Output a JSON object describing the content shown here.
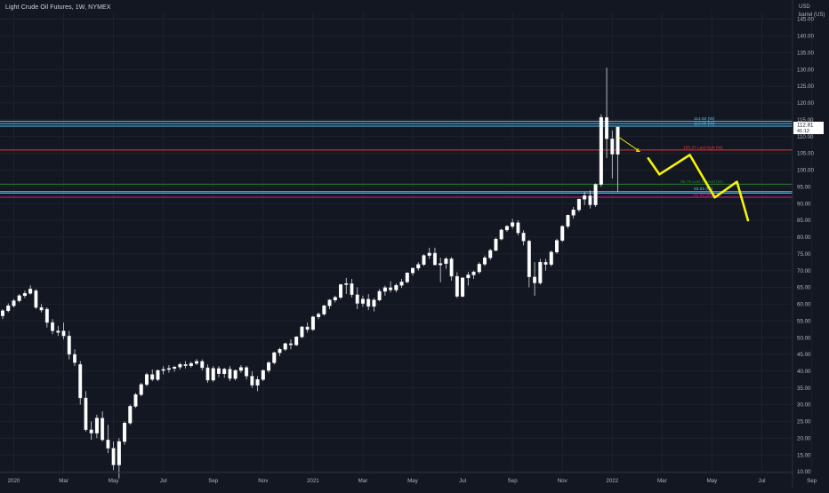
{
  "header": {
    "title": "Light Crude Oil Futures, 1W, NYMEX",
    "currency": "USD",
    "unit": "barrel (US)"
  },
  "price_labels": {
    "current_price": "112.81",
    "countdown": "41:12"
  },
  "colors": {
    "background": "#131722",
    "up_candle": "#ffffff",
    "down_candle": "#ffffff",
    "grid": "#1e222d",
    "axis_text": "#b2b5be",
    "yellow_projection": "#f5f20a",
    "red_line": "#e8333a",
    "cyan_line": "#4fc3f7",
    "green_line": "#2e7d32",
    "magenta_line": "#d81b9a"
  },
  "chart_data": {
    "type": "candlestick",
    "title": "Light Crude Oil Futures, 1W, NYMEX",
    "ylim": [
      10,
      147
    ],
    "y_ticks": [
      10,
      15,
      20,
      25,
      30,
      35,
      40,
      45,
      50,
      55,
      60,
      65,
      70,
      75,
      80,
      85,
      90,
      95,
      100,
      105,
      110,
      115,
      120,
      125,
      130,
      135,
      140,
      145
    ],
    "x_tick_labels": [
      {
        "label": "2020",
        "index": 2
      },
      {
        "label": "Mar",
        "index": 11
      },
      {
        "label": "May",
        "index": 20
      },
      {
        "label": "Jul",
        "index": 29
      },
      {
        "label": "Sep",
        "index": 38
      },
      {
        "label": "Nov",
        "index": 47
      },
      {
        "label": "2021",
        "index": 56
      },
      {
        "label": "Mar",
        "index": 65
      },
      {
        "label": "May",
        "index": 74
      },
      {
        "label": "Jul",
        "index": 83
      },
      {
        "label": "Sep",
        "index": 92
      },
      {
        "label": "Nov",
        "index": 101
      },
      {
        "label": "2022",
        "index": 110
      },
      {
        "label": "Mar",
        "index": 119
      },
      {
        "label": "May",
        "index": 128
      },
      {
        "label": "Jul",
        "index": 137
      },
      {
        "label": "Sep",
        "index": 146
      }
    ],
    "x_count": 149,
    "candles": [
      [
        0,
        56.5,
        58.5,
        55.5,
        58.0
      ],
      [
        1,
        58.0,
        60.2,
        57.5,
        59.5
      ],
      [
        2,
        59.5,
        61.5,
        59.0,
        61.0
      ],
      [
        3,
        61.0,
        63.0,
        60.5,
        62.5
      ],
      [
        4,
        62.5,
        64.0,
        61.8,
        63.2
      ],
      [
        5,
        63.2,
        65.6,
        62.8,
        64.5
      ],
      [
        6,
        64.0,
        64.5,
        58.5,
        59.0
      ],
      [
        7,
        59.0,
        60.0,
        57.5,
        58.2
      ],
      [
        8,
        58.5,
        59.0,
        53.0,
        54.5
      ],
      [
        9,
        54.5,
        55.5,
        51.0,
        52.0
      ],
      [
        10,
        52.0,
        53.5,
        50.5,
        51.5
      ],
      [
        11,
        52.0,
        54.5,
        49.5,
        50.5
      ],
      [
        12,
        50.5,
        52.0,
        43.5,
        45.0
      ],
      [
        13,
        45.0,
        46.5,
        41.5,
        42.5
      ],
      [
        14,
        42.0,
        43.0,
        30.0,
        32.0
      ],
      [
        15,
        32.0,
        34.0,
        22.0,
        22.5
      ],
      [
        16,
        22.5,
        25.0,
        19.5,
        21.5
      ],
      [
        17,
        21.5,
        27.0,
        20.0,
        26.0
      ],
      [
        18,
        26.0,
        28.0,
        19.0,
        19.5
      ],
      [
        19,
        19.5,
        24.0,
        15.5,
        17.0
      ],
      [
        20,
        17.0,
        19.0,
        10.5,
        12.0
      ],
      [
        21,
        12.0,
        20.0,
        8.0,
        19.0
      ],
      [
        22,
        19.0,
        25.0,
        18.0,
        24.5
      ],
      [
        23,
        24.5,
        30.0,
        24.0,
        29.5
      ],
      [
        24,
        29.5,
        33.5,
        29.0,
        33.0
      ],
      [
        25,
        33.0,
        36.5,
        32.5,
        36.0
      ],
      [
        26,
        36.0,
        39.5,
        35.5,
        39.0
      ],
      [
        27,
        39.0,
        40.5,
        37.0,
        37.5
      ],
      [
        28,
        37.5,
        40.5,
        37.0,
        40.2
      ],
      [
        29,
        40.2,
        41.5,
        39.0,
        40.5
      ],
      [
        30,
        40.5,
        41.8,
        39.5,
        40.8
      ],
      [
        31,
        40.8,
        41.6,
        39.8,
        41.2
      ],
      [
        32,
        41.2,
        42.5,
        40.5,
        42.0
      ],
      [
        33,
        42.0,
        43.0,
        40.8,
        41.6
      ],
      [
        34,
        41.6,
        42.8,
        41.0,
        42.3
      ],
      [
        35,
        42.3,
        43.6,
        41.8,
        42.9
      ],
      [
        36,
        42.9,
        43.5,
        40.2,
        41.0
      ],
      [
        37,
        41.0,
        42.0,
        36.5,
        37.3
      ],
      [
        38,
        37.3,
        41.5,
        36.8,
        40.8
      ],
      [
        39,
        40.8,
        41.5,
        38.2,
        39.2
      ],
      [
        40,
        39.2,
        41.0,
        38.0,
        40.6
      ],
      [
        41,
        40.6,
        41.5,
        37.0,
        37.8
      ],
      [
        42,
        37.8,
        40.5,
        37.2,
        40.2
      ],
      [
        43,
        40.2,
        41.8,
        39.5,
        41.1
      ],
      [
        44,
        41.1,
        41.6,
        37.5,
        38.5
      ],
      [
        45,
        38.5,
        40.0,
        35.0,
        35.8
      ],
      [
        46,
        35.8,
        38.5,
        34.0,
        37.5
      ],
      [
        47,
        37.5,
        40.5,
        37.0,
        40.2
      ],
      [
        48,
        40.2,
        43.0,
        39.5,
        42.5
      ],
      [
        49,
        42.5,
        45.8,
        42.0,
        45.5
      ],
      [
        50,
        45.5,
        47.0,
        44.5,
        46.5
      ],
      [
        51,
        46.5,
        48.5,
        46.0,
        48.2
      ],
      [
        52,
        48.2,
        49.5,
        46.5,
        47.8
      ],
      [
        53,
        47.8,
        50.5,
        47.5,
        50.2
      ],
      [
        54,
        50.2,
        53.5,
        49.8,
        53.2
      ],
      [
        55,
        53.2,
        54.5,
        51.5,
        52.4
      ],
      [
        56,
        52.4,
        56.5,
        52.0,
        56.2
      ],
      [
        57,
        56.2,
        57.5,
        55.5,
        57.0
      ],
      [
        58,
        57.0,
        59.8,
        56.5,
        59.5
      ],
      [
        59,
        59.5,
        61.5,
        58.5,
        61.2
      ],
      [
        60,
        61.2,
        62.5,
        60.5,
        62.0
      ],
      [
        61,
        62.0,
        66.0,
        61.5,
        65.8
      ],
      [
        62,
        65.8,
        67.8,
        63.0,
        66.1
      ],
      [
        63,
        66.1,
        67.5,
        62.0,
        62.8
      ],
      [
        64,
        62.8,
        65.0,
        58.5,
        60.2
      ],
      [
        65,
        60.2,
        62.5,
        59.2,
        61.5
      ],
      [
        66,
        61.5,
        63.0,
        58.2,
        59.3
      ],
      [
        67,
        59.3,
        61.8,
        57.8,
        61.2
      ],
      [
        68,
        61.2,
        64.5,
        60.8,
        63.8
      ],
      [
        69,
        63.8,
        65.5,
        62.5,
        64.9
      ],
      [
        70,
        64.9,
        66.8,
        63.5,
        64.2
      ],
      [
        71,
        64.2,
        66.2,
        63.5,
        65.6
      ],
      [
        72,
        65.6,
        67.5,
        64.8,
        66.6
      ],
      [
        73,
        66.6,
        69.5,
        66.2,
        69.3
      ],
      [
        74,
        69.3,
        70.9,
        68.5,
        70.7
      ],
      [
        75,
        70.7,
        72.5,
        70.0,
        71.8
      ],
      [
        76,
        71.8,
        74.9,
        71.3,
        74.5
      ],
      [
        77,
        74.5,
        76.8,
        73.5,
        75.2
      ],
      [
        78,
        75.2,
        76.8,
        71.5,
        71.7
      ],
      [
        79,
        71.7,
        73.8,
        66.5,
        72.1
      ],
      [
        80,
        72.1,
        74.0,
        70.5,
        73.5
      ],
      [
        81,
        73.5,
        74.0,
        67.0,
        68.3
      ],
      [
        82,
        68.3,
        69.5,
        61.8,
        62.3
      ],
      [
        83,
        62.3,
        68.0,
        62.0,
        67.8
      ],
      [
        84,
        67.8,
        69.6,
        65.5,
        68.7
      ],
      [
        85,
        68.7,
        70.0,
        67.5,
        69.6
      ],
      [
        86,
        69.6,
        72.5,
        69.0,
        71.9
      ],
      [
        87,
        71.9,
        74.5,
        71.3,
        73.8
      ],
      [
        88,
        73.8,
        76.5,
        73.2,
        76.0
      ],
      [
        89,
        76.0,
        79.8,
        75.8,
        79.4
      ],
      [
        90,
        79.4,
        82.5,
        79.0,
        82.1
      ],
      [
        91,
        82.1,
        83.5,
        81.5,
        83.2
      ],
      [
        92,
        83.2,
        85.4,
        82.5,
        84.3
      ],
      [
        93,
        84.3,
        85.0,
        80.5,
        81.2
      ],
      [
        94,
        81.2,
        82.0,
        77.5,
        78.8
      ],
      [
        95,
        78.8,
        79.2,
        65.0,
        68.1
      ],
      [
        96,
        68.1,
        72.5,
        62.5,
        66.3
      ],
      [
        97,
        66.3,
        73.5,
        65.8,
        72.5
      ],
      [
        98,
        72.5,
        73.5,
        70.0,
        71.8
      ],
      [
        99,
        71.8,
        76.0,
        71.2,
        75.5
      ],
      [
        100,
        75.5,
        79.5,
        75.0,
        79.0
      ],
      [
        101,
        79.0,
        83.5,
        78.5,
        83.2
      ],
      [
        102,
        83.2,
        86.7,
        82.5,
        86.5
      ],
      [
        103,
        86.5,
        89.0,
        85.5,
        88.1
      ],
      [
        104,
        88.1,
        91.5,
        87.5,
        91.3
      ],
      [
        105,
        91.3,
        93.5,
        89.5,
        92.3
      ],
      [
        106,
        92.3,
        93.9,
        88.5,
        89.6
      ],
      [
        107,
        89.6,
        96.0,
        89.0,
        95.7
      ],
      [
        108,
        95.7,
        116.6,
        95.0,
        115.7
      ],
      [
        109,
        115.7,
        130.5,
        103.5,
        109.3
      ],
      [
        110,
        109.3,
        111.8,
        97.5,
        104.7
      ],
      [
        111,
        104.7,
        112.5,
        93.5,
        112.8
      ]
    ],
    "horizontal_lines": [
      {
        "value": 114.5,
        "label": "114.50 (W)",
        "color": "#4fc3f7"
      },
      {
        "value": 113.8,
        "label": "",
        "color": "#4fc3f7"
      },
      {
        "value": 113.09,
        "label": "113.09 (W)",
        "color": "#4fc3f7"
      },
      {
        "value": 105.97,
        "label": "105.97 Last high (W)",
        "color": "#e8333a"
      },
      {
        "value": 95.76,
        "label": "95.76 Last formed (W)",
        "color": "#2e7d32"
      },
      {
        "value": 93.55,
        "label": "93.55 (W)",
        "color": "#4fc3f7"
      },
      {
        "value": 93.12,
        "label": "",
        "color": "#4fc3f7"
      },
      {
        "value": 91.89,
        "label": "91.89 (W)",
        "color": "#d81b9a"
      }
    ],
    "projection_path": [
      {
        "x": 116.5,
        "y": 103.5
      },
      {
        "x": 118.5,
        "y": 98.7
      },
      {
        "x": 124.0,
        "y": 104.5
      },
      {
        "x": 128.5,
        "y": 91.8
      },
      {
        "x": 132.5,
        "y": 96.5
      },
      {
        "x": 134.5,
        "y": 85.0
      }
    ],
    "small_arrow": [
      {
        "x": 111.0,
        "y": 110.0
      },
      {
        "x": 115.0,
        "y": 105.5
      }
    ]
  }
}
